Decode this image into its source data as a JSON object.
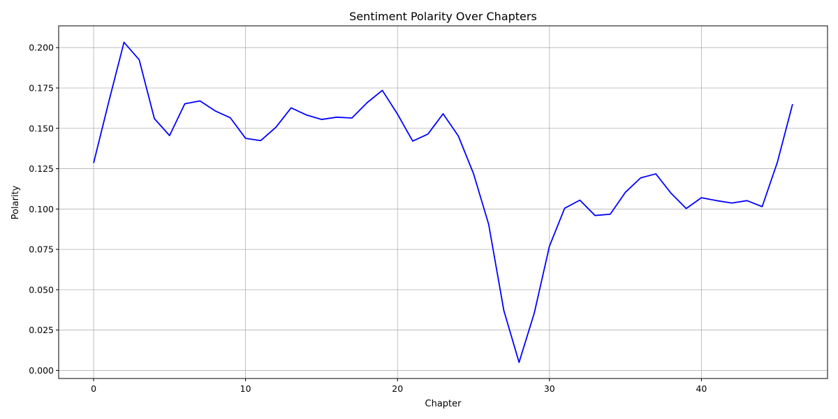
{
  "chart_data": {
    "type": "line",
    "title": "Sentiment Polarity Over Chapters",
    "xlabel": "Chapter",
    "ylabel": "Polarity",
    "xlim": [
      -2.3,
      48.3
    ],
    "ylim": [
      -0.005,
      0.2135
    ],
    "grid": true,
    "line_color": "#0000ff",
    "x_ticks": [
      0,
      10,
      20,
      30,
      40
    ],
    "x_tick_labels": [
      "0",
      "10",
      "20",
      "30",
      "40"
    ],
    "y_ticks": [
      0,
      0.025,
      0.05,
      0.075,
      0.1,
      0.125,
      0.15,
      0.175,
      0.2
    ],
    "y_tick_labels": [
      "0.000",
      "0.025",
      "0.050",
      "0.075",
      "0.100",
      "0.125",
      "0.150",
      "0.175",
      "0.200"
    ],
    "series": [
      {
        "x": [
          0,
          1,
          2,
          3,
          4,
          5,
          6,
          7,
          8,
          9,
          10,
          11,
          12,
          13,
          14,
          15,
          16,
          17,
          18,
          19,
          20,
          21,
          22,
          23,
          24,
          25,
          26,
          27,
          28,
          29,
          30,
          31,
          32,
          33,
          34,
          35,
          36,
          37,
          38,
          39,
          40,
          41,
          42,
          43,
          44,
          45,
          46
        ],
        "values": [
          0.1285,
          0.1665,
          0.2033,
          0.1925,
          0.156,
          0.1455,
          0.1652,
          0.167,
          0.1608,
          0.1565,
          0.1438,
          0.1424,
          0.1507,
          0.1627,
          0.1583,
          0.1555,
          0.1569,
          0.1564,
          0.1659,
          0.1735,
          0.1588,
          0.1421,
          0.1464,
          0.159,
          0.1453,
          0.122,
          0.0905,
          0.037,
          0.005,
          0.0355,
          0.077,
          0.1005,
          0.1055,
          0.096,
          0.0968,
          0.1104,
          0.1193,
          0.1218,
          0.1098,
          0.1003,
          0.107,
          0.1052,
          0.1037,
          0.1052,
          0.1015,
          0.129,
          0.165
        ]
      }
    ]
  }
}
